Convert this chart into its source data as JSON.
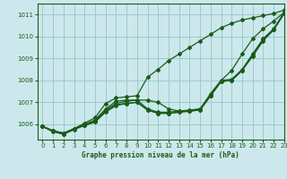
{
  "title": "Graphe pression niveau de la mer (hPa)",
  "bg_color": "#cce8ec",
  "grid_color": "#99cccc",
  "line_color": "#1a5c1a",
  "xlim": [
    -0.5,
    23
  ],
  "ylim": [
    1005.3,
    1011.5
  ],
  "yticks": [
    1006,
    1007,
    1008,
    1009,
    1010,
    1011
  ],
  "xticks": [
    0,
    1,
    2,
    3,
    4,
    5,
    6,
    7,
    8,
    9,
    10,
    11,
    12,
    13,
    14,
    15,
    16,
    17,
    18,
    19,
    20,
    21,
    22,
    23
  ],
  "series": [
    [
      1005.9,
      1005.7,
      1005.6,
      1005.8,
      1006.0,
      1006.2,
      1006.7,
      1007.05,
      1007.1,
      1007.1,
      1007.1,
      1007.0,
      1006.7,
      1006.6,
      1006.6,
      1006.7,
      1007.4,
      1008.0,
      1008.45,
      1009.2,
      1009.9,
      1010.35,
      1010.7,
      1011.1
    ],
    [
      1005.9,
      1005.7,
      1005.55,
      1005.8,
      1005.95,
      1006.1,
      1006.55,
      1006.85,
      1006.95,
      1007.0,
      1006.65,
      1006.5,
      1006.5,
      1006.55,
      1006.6,
      1006.65,
      1007.3,
      1007.95,
      1008.0,
      1008.45,
      1009.1,
      1009.8,
      1010.3,
      1011.05
    ],
    [
      1005.9,
      1005.7,
      1005.55,
      1005.8,
      1005.95,
      1006.1,
      1006.6,
      1006.9,
      1006.95,
      1007.0,
      1006.65,
      1006.5,
      1006.5,
      1006.55,
      1006.6,
      1006.65,
      1007.3,
      1007.95,
      1008.0,
      1008.45,
      1009.15,
      1009.85,
      1010.3,
      1011.05
    ],
    [
      1005.9,
      1005.65,
      1005.55,
      1005.75,
      1005.95,
      1006.15,
      1006.65,
      1006.95,
      1007.05,
      1007.1,
      1006.7,
      1006.55,
      1006.55,
      1006.6,
      1006.65,
      1006.7,
      1007.35,
      1008.0,
      1008.05,
      1008.5,
      1009.2,
      1009.9,
      1010.35,
      1011.1
    ]
  ],
  "series_upper": [
    1005.9,
    1005.7,
    1005.6,
    1005.8,
    1006.05,
    1006.3,
    1006.95,
    1007.2,
    1007.25,
    1007.3,
    1008.15,
    1008.5,
    1008.9,
    1009.2,
    1009.5,
    1009.8,
    1010.1,
    1010.4,
    1010.6,
    1010.75,
    1010.85,
    1010.95,
    1011.05,
    1011.2
  ]
}
